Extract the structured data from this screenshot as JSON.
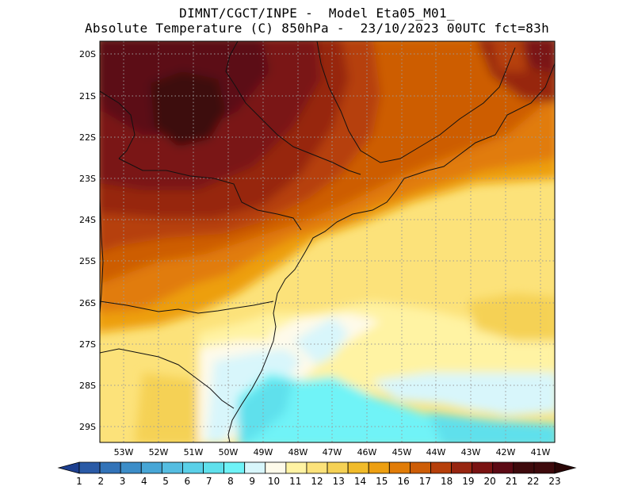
{
  "header": {
    "line1": "DIMNT/CGCT/INPE -  Model Eta05_M01_",
    "line2": "Absolute Temperature (C) 850hPa -  23/10/2023 00UTC fct=83h"
  },
  "map": {
    "lat_labels": [
      "20S",
      "21S",
      "22S",
      "23S",
      "24S",
      "25S",
      "26S",
      "27S",
      "28S",
      "29S"
    ],
    "lon_labels": [
      "53W",
      "52W",
      "51W",
      "50W",
      "49W",
      "48W",
      "47W",
      "46W",
      "45W",
      "44W",
      "43W",
      "42W",
      "41W"
    ]
  },
  "colorbar": {
    "labels": [
      "1",
      "2",
      "3",
      "4",
      "5",
      "6",
      "7",
      "8",
      "9",
      "10",
      "11",
      "12",
      "13",
      "14",
      "15",
      "16",
      "17",
      "18",
      "19",
      "20",
      "21",
      "22",
      "23"
    ],
    "colors": [
      "#1d3f8f",
      "#2a5aa6",
      "#3273b8",
      "#3c8dc8",
      "#47a6d6",
      "#55bde1",
      "#5ad0e8",
      "#5fe0ec",
      "#6ff3f7",
      "#d8f6fb",
      "#fefaea",
      "#fff3a3",
      "#fce27a",
      "#f5d155",
      "#f1bb2a",
      "#ed9f11",
      "#e17c07",
      "#cd5d06",
      "#b63f0a",
      "#972510",
      "#7a1312",
      "#5c0a14",
      "#3e0a0c",
      "#2a0606"
    ]
  }
}
